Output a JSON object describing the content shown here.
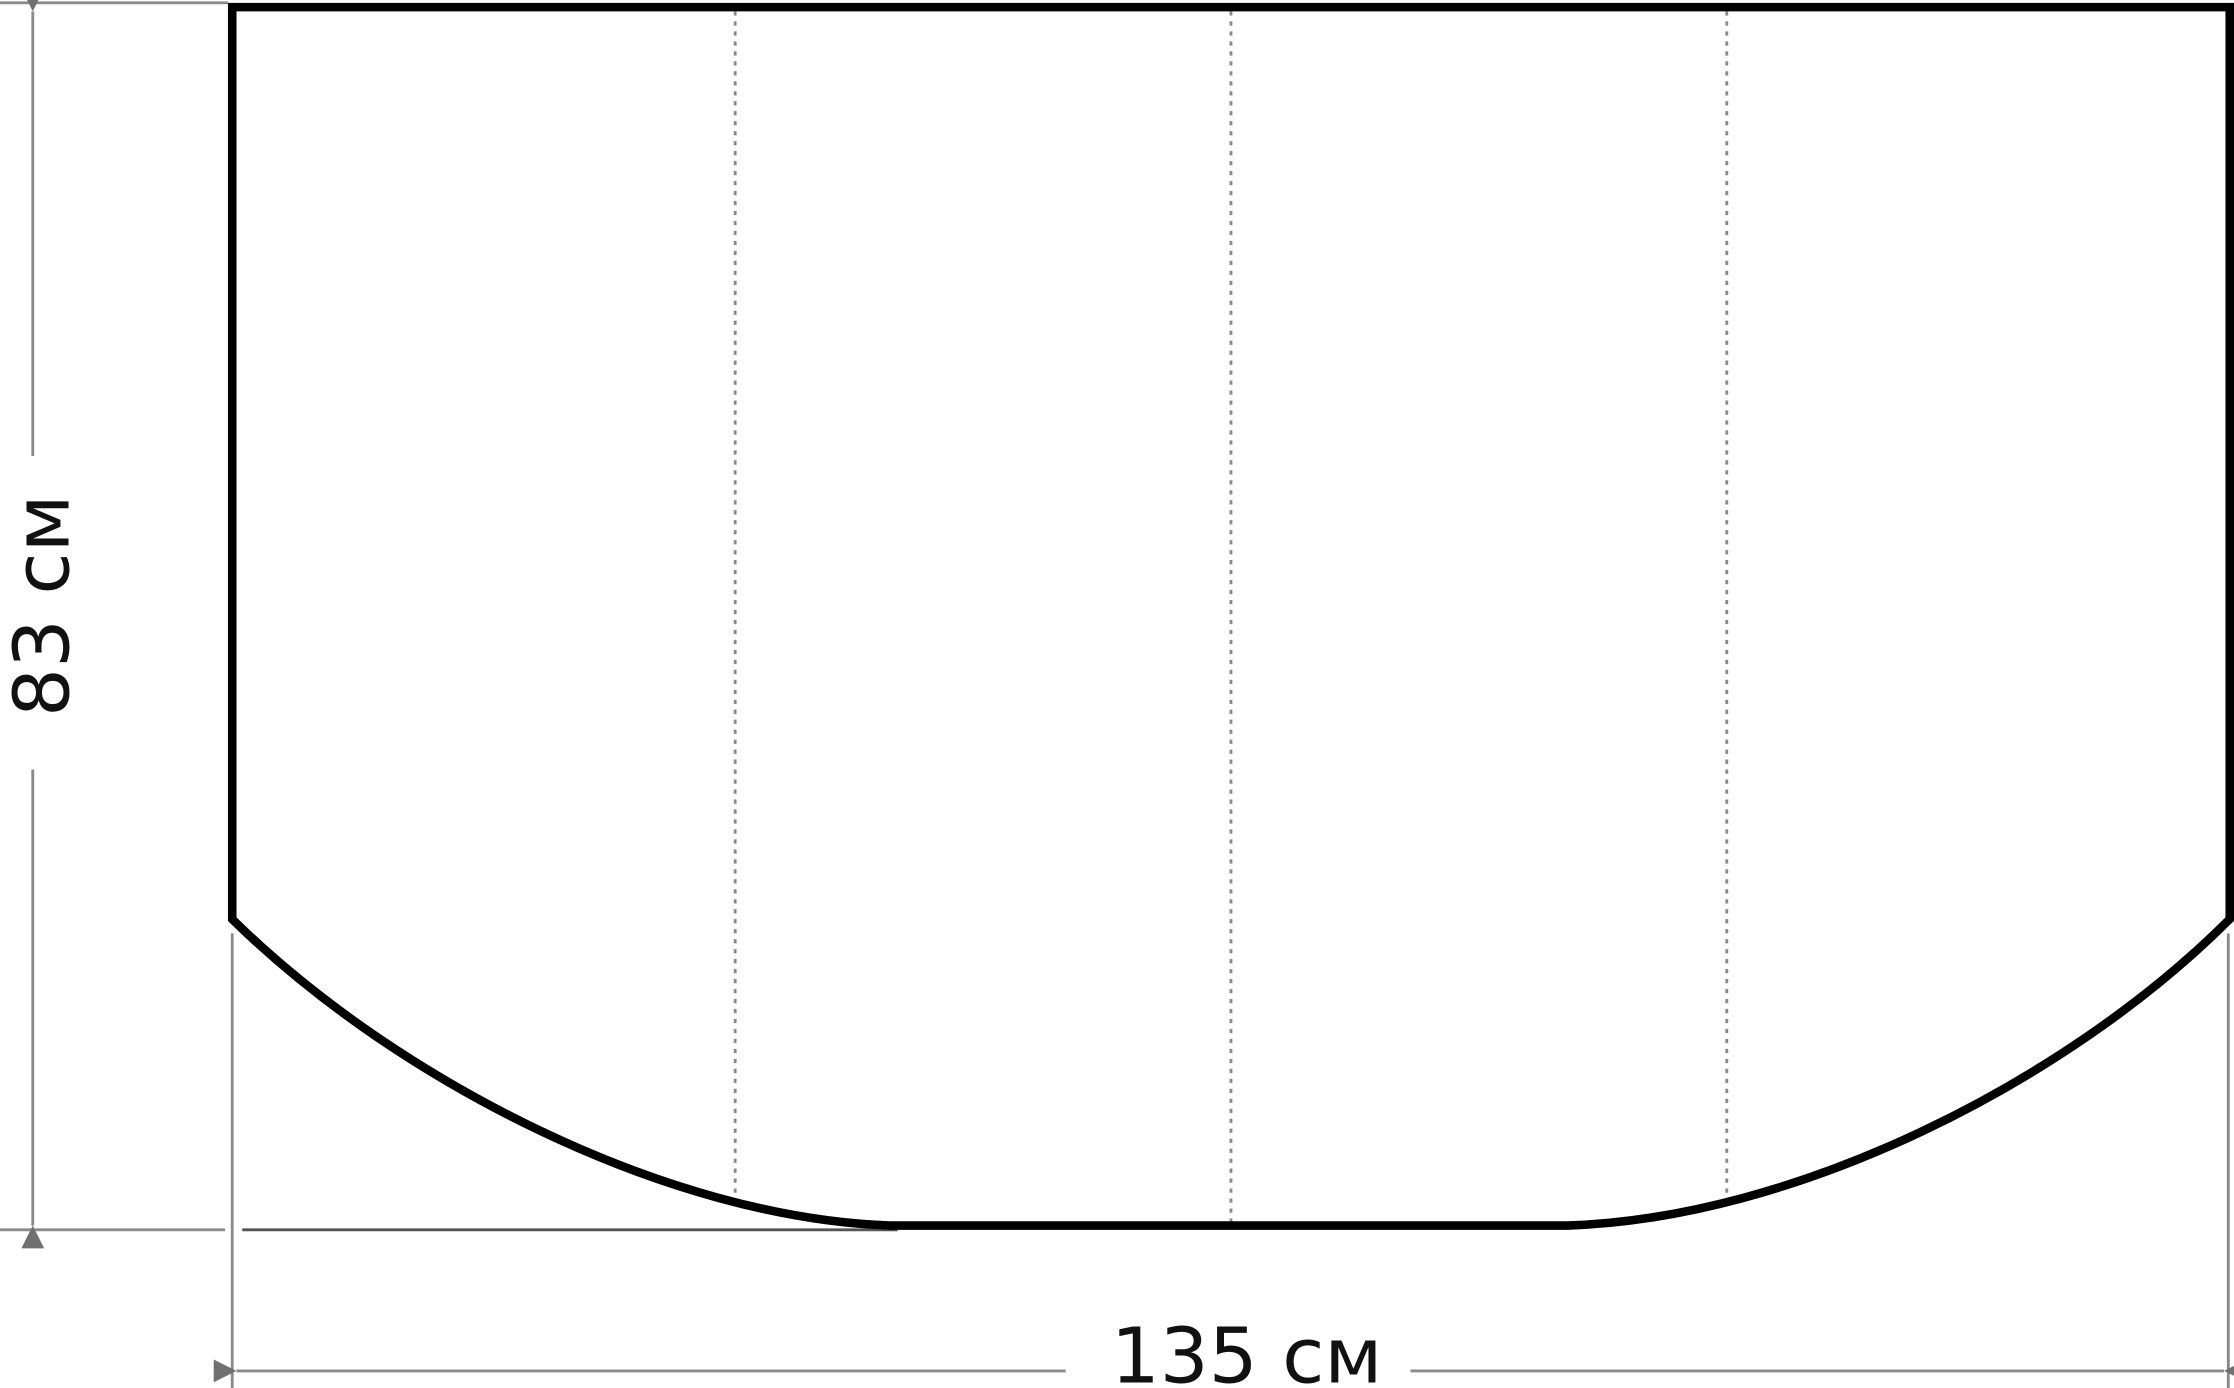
{
  "dimensions": {
    "height_label": "83 см",
    "width_label": "135 см"
  },
  "colors": {
    "outline": "#000000",
    "dimension_lines": "#8a8a8a",
    "fold_lines": "#8a8a8a"
  }
}
